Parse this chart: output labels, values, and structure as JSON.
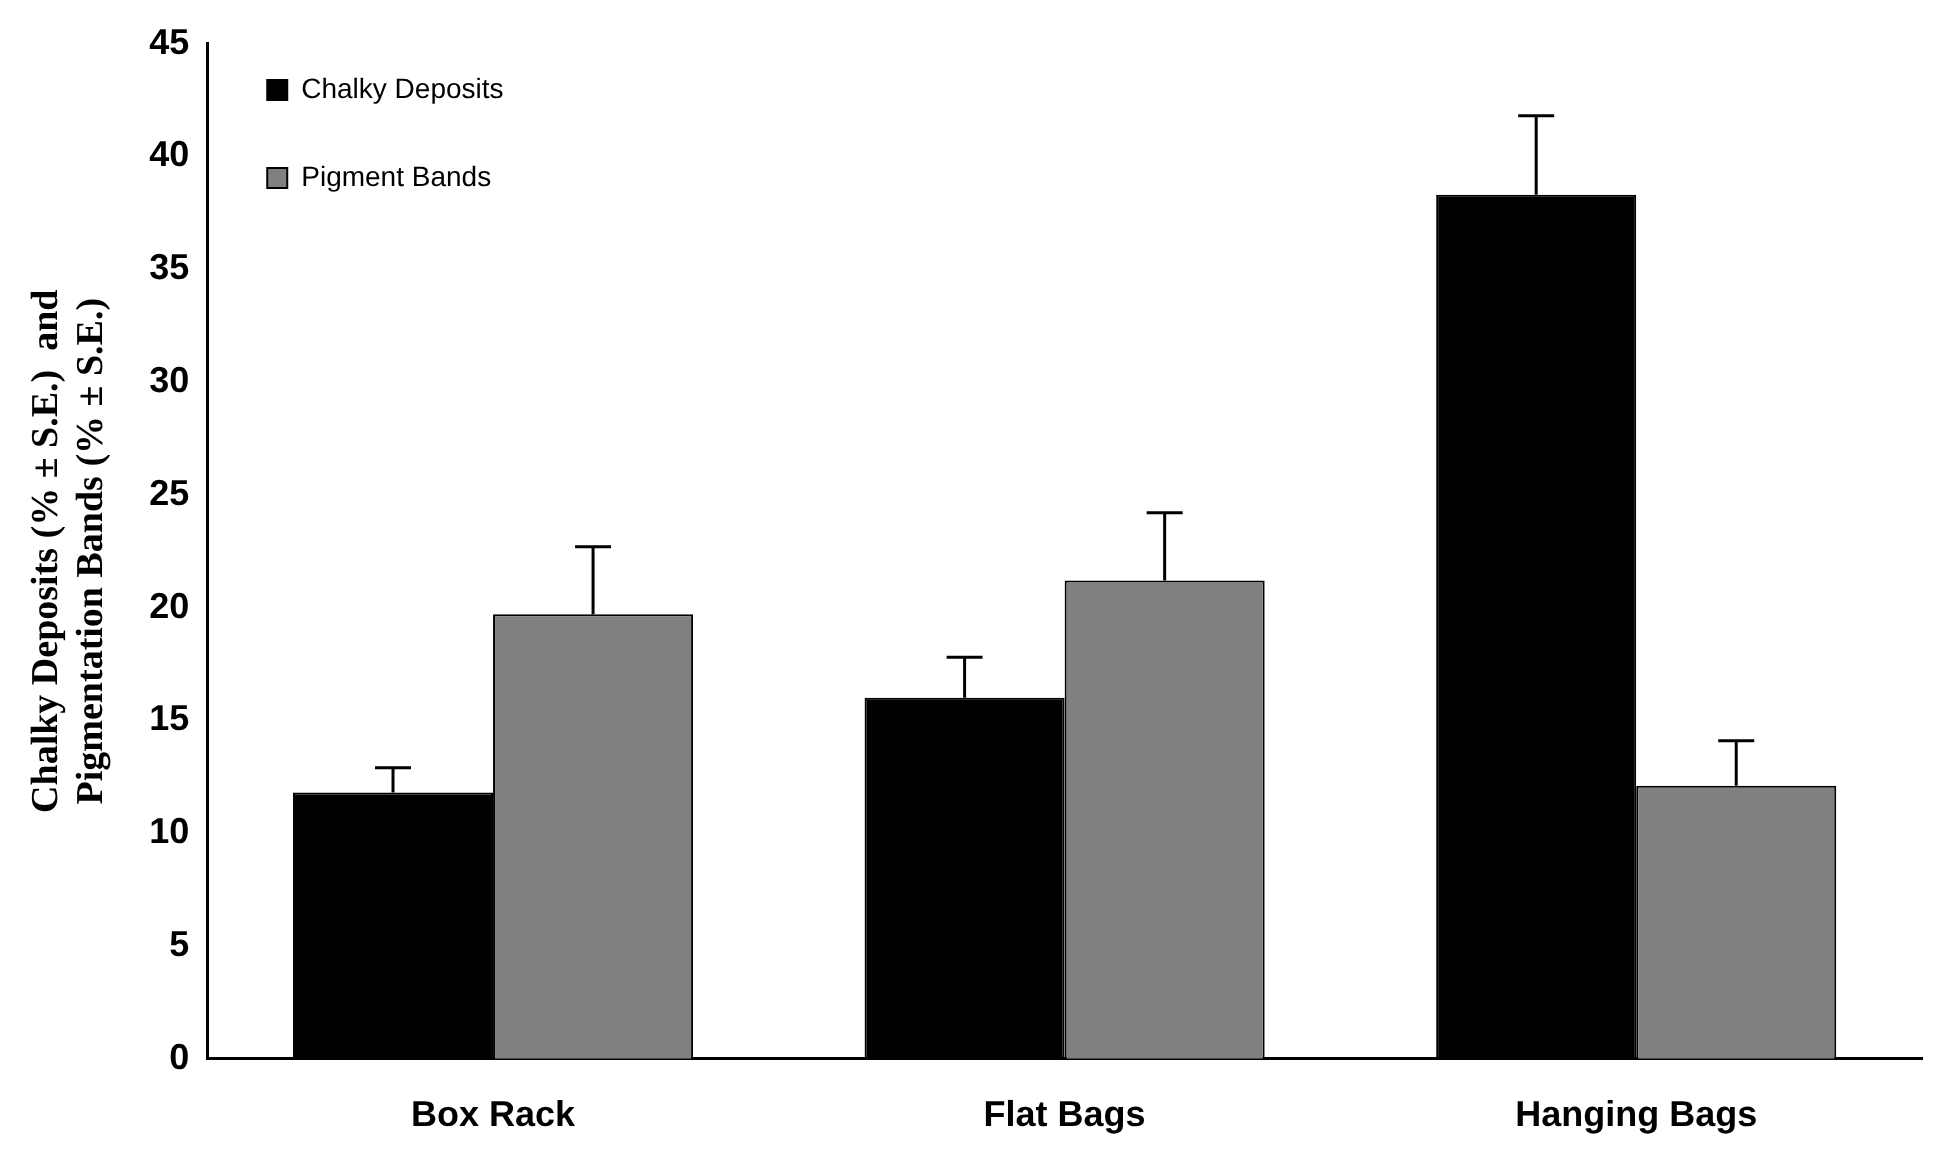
{
  "chart_data": {
    "type": "bar",
    "ylabel": "Chalky Deposits (% ± S.E.)  and\nPigmentation Bands (% ± S.E.)",
    "categories": [
      "Box Rack",
      "Flat Bags",
      "Hanging Bags"
    ],
    "series": [
      {
        "name": "Chalky Deposits",
        "color": "#000000",
        "values": [
          11.8,
          16,
          38.3
        ],
        "errors": [
          [
            11.8,
            12.9
          ],
          [
            16,
            17.8
          ],
          [
            38.3,
            41.8
          ]
        ]
      },
      {
        "name": "Pigment Bands",
        "color": "#808080",
        "values": [
          19.7,
          21.2,
          12.1
        ],
        "errors": [
          [
            19.7,
            22.7
          ],
          [
            21.2,
            24.2
          ],
          [
            12.1,
            14.1
          ]
        ]
      }
    ],
    "ylim": [
      0,
      45
    ],
    "yticks": [
      0,
      5,
      10,
      15,
      20,
      25,
      30,
      35,
      40,
      45
    ],
    "grid": false,
    "legend": "top left"
  }
}
